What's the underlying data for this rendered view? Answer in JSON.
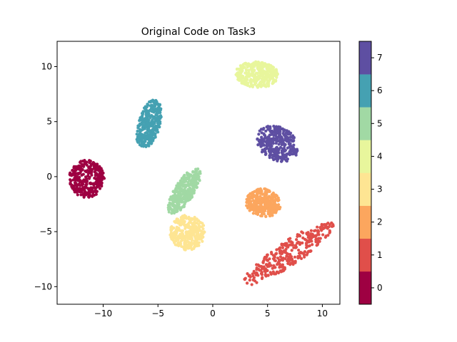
{
  "chart_data": {
    "type": "scatter",
    "title": "Original Code on Task3",
    "xlabel": "",
    "ylabel": "",
    "xlim": [
      -14.2,
      11.6
    ],
    "ylim": [
      -11.6,
      12.3
    ],
    "xticks": [
      -10,
      -5,
      0,
      5,
      10
    ],
    "yticks": [
      -10,
      -5,
      0,
      5,
      10
    ],
    "grid": false,
    "colorbar": {
      "ticks": [
        0,
        1,
        2,
        3,
        4,
        5,
        6,
        7
      ],
      "colors": [
        "#9e0142",
        "#e04f4a",
        "#fca65e",
        "#fee593",
        "#e8f69c",
        "#a1d9a4",
        "#45a1b2",
        "#5e4fa2"
      ]
    },
    "clusters": [
      {
        "label": 0,
        "center": [
          -11.5,
          -0.2
        ],
        "extent": [
          1.6,
          1.7
        ],
        "angle": 0
      },
      {
        "label": 1,
        "center": [
          6.9,
          -7.0
        ],
        "extent": [
          4.9,
          1.1
        ],
        "angle": 34
      },
      {
        "label": 2,
        "center": [
          4.6,
          -2.4
        ],
        "extent": [
          1.6,
          1.3
        ],
        "angle": -10
      },
      {
        "label": 3,
        "center": [
          -2.3,
          -5.1
        ],
        "extent": [
          1.6,
          1.6
        ],
        "angle": 70
      },
      {
        "label": 4,
        "center": [
          4.0,
          9.3
        ],
        "extent": [
          2.0,
          1.2
        ],
        "angle": -5
      },
      {
        "label": 5,
        "center": [
          -2.6,
          -1.3
        ],
        "extent": [
          2.4,
          0.9
        ],
        "angle": 58
      },
      {
        "label": 6,
        "center": [
          -5.8,
          4.8
        ],
        "extent": [
          2.3,
          1.0
        ],
        "angle": 74
      },
      {
        "label": 7,
        "center": [
          5.9,
          3.0
        ],
        "extent": [
          2.0,
          1.5
        ],
        "angle": -30
      }
    ]
  }
}
